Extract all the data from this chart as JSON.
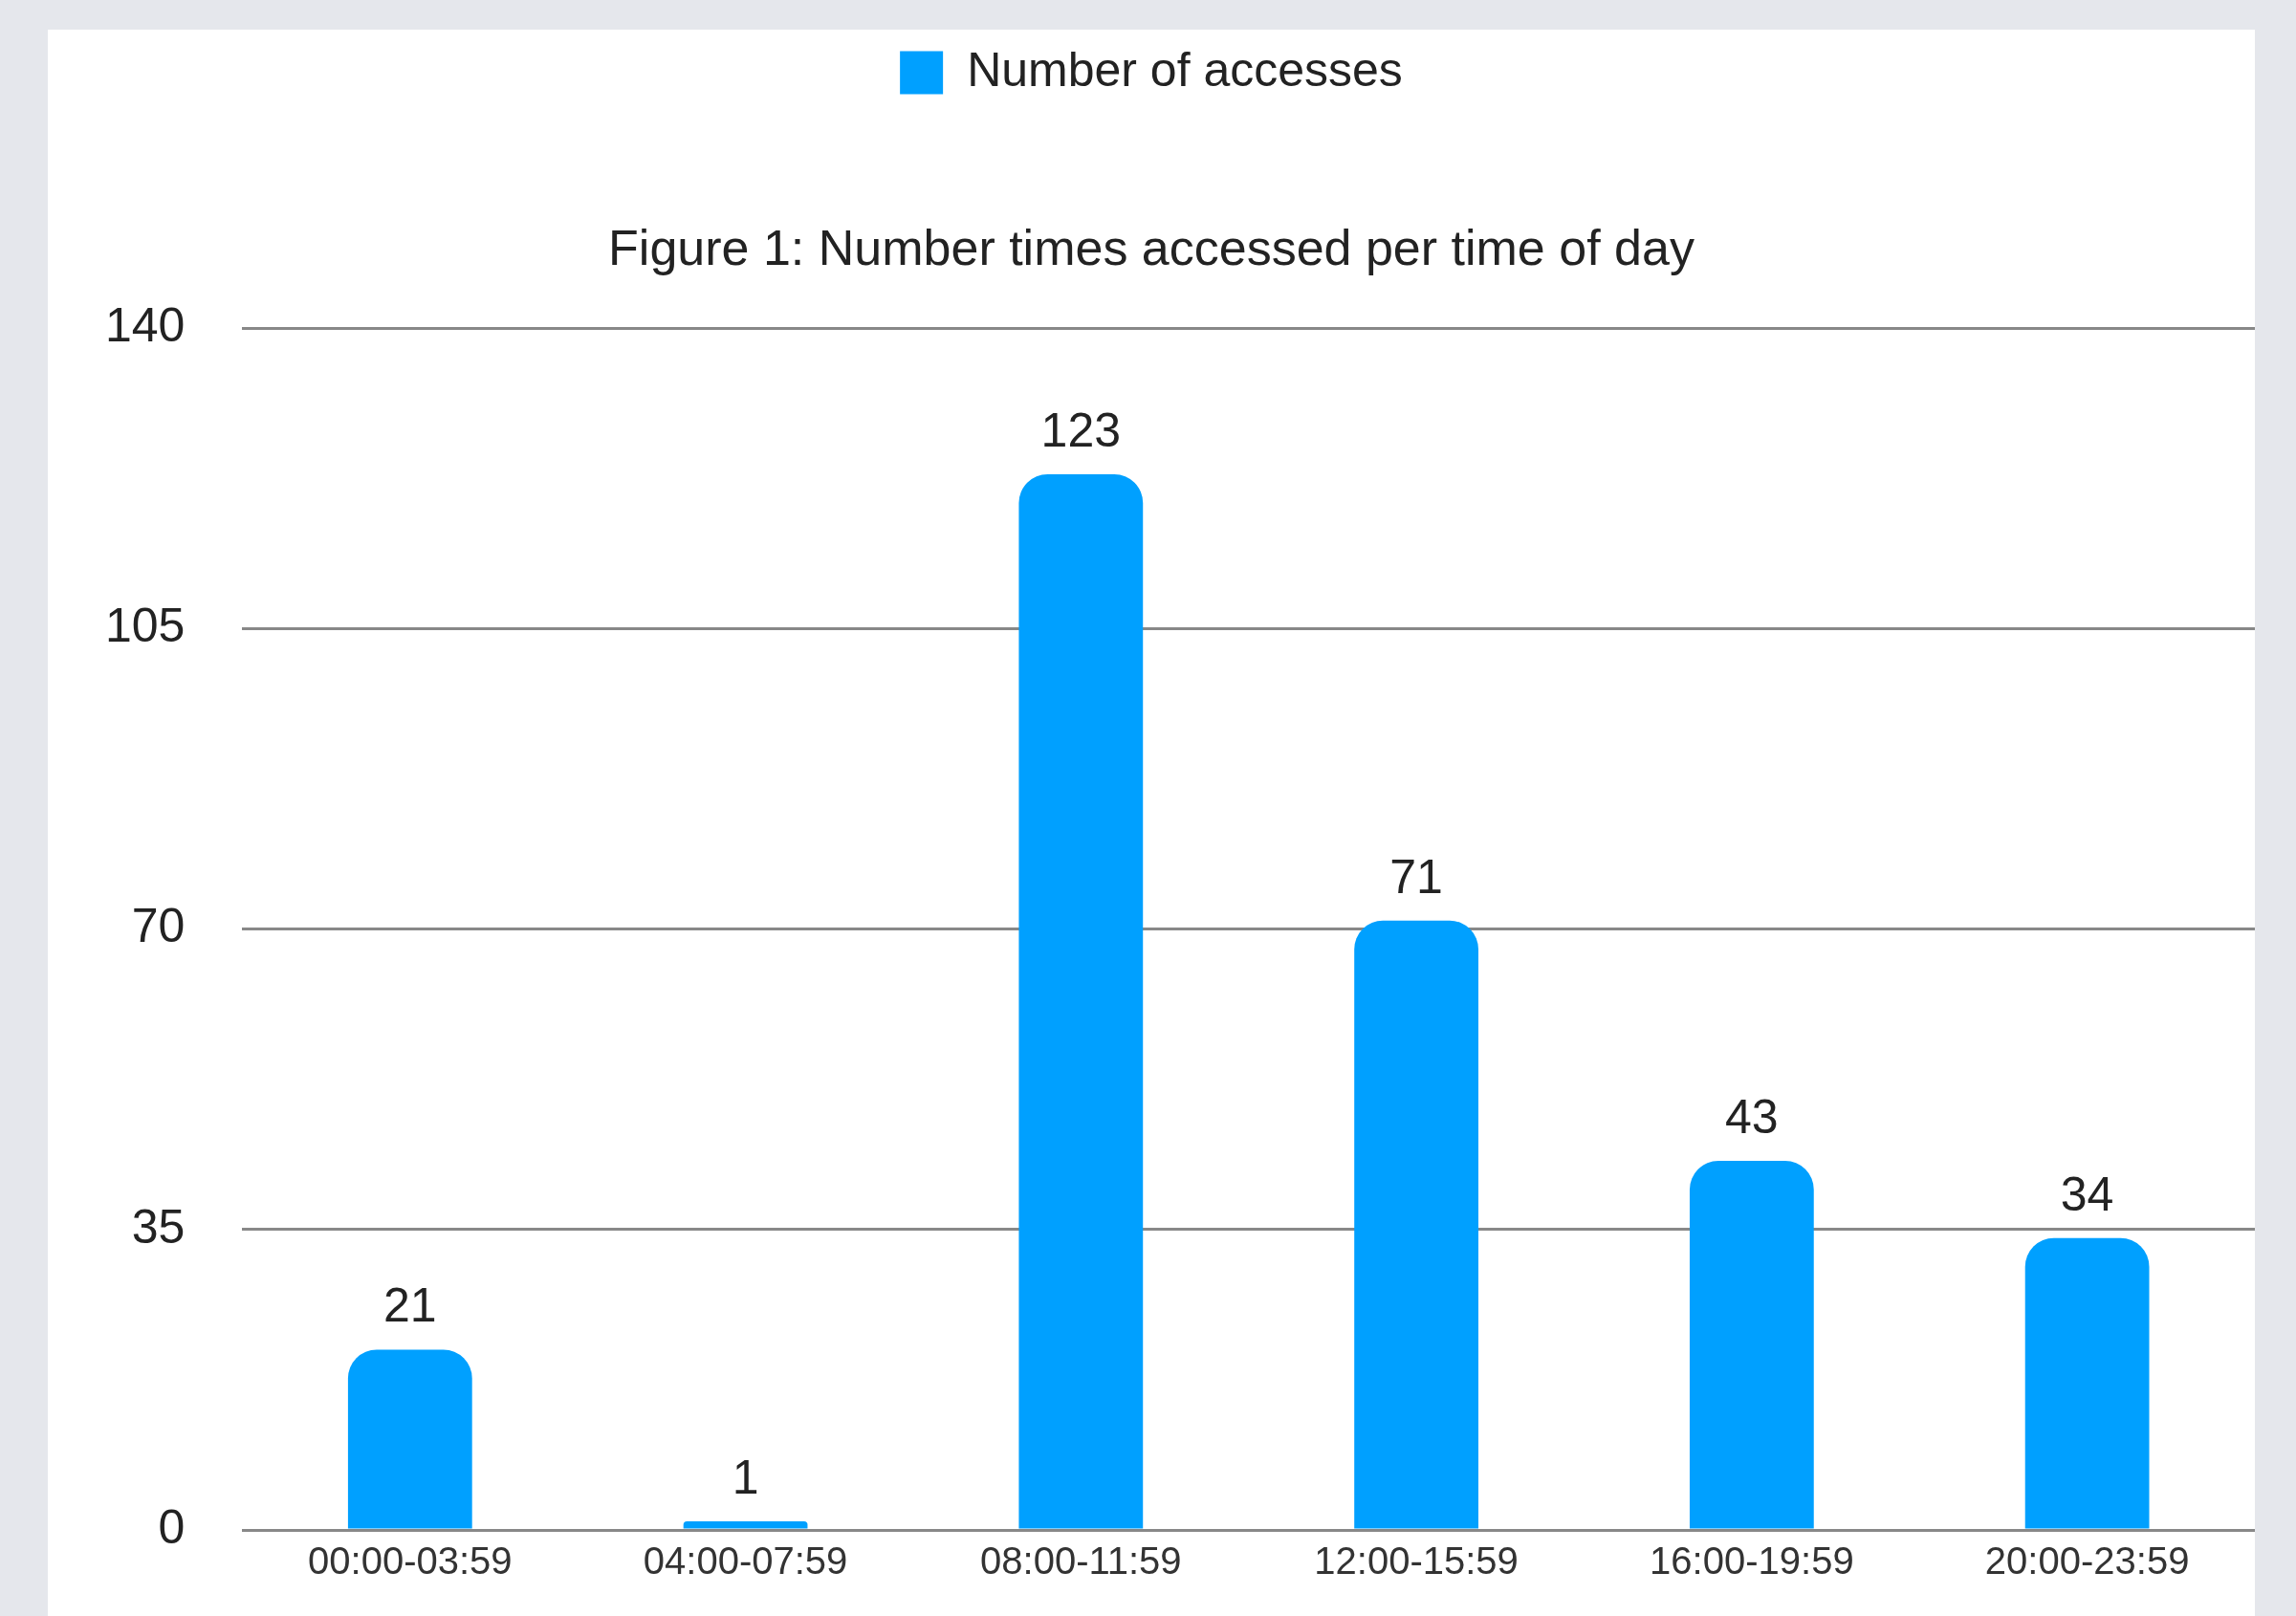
{
  "chart_data": {
    "type": "bar",
    "title": "Figure 1: Number times accessed per time of day",
    "categories": [
      "00:00-03:59",
      "04:00-07:59",
      "08:00-11:59",
      "12:00-15:59",
      "16:00-19:59",
      "20:00-23:59"
    ],
    "series": [
      {
        "name": "Number of accesses",
        "color": "#00a0ff",
        "values": [
          21,
          1,
          123,
          71,
          43,
          34
        ]
      }
    ],
    "ylim": [
      0,
      140
    ],
    "yticks": [
      0,
      35,
      70,
      105,
      140
    ],
    "grid": "y",
    "legend": "top",
    "data_labels": true
  }
}
